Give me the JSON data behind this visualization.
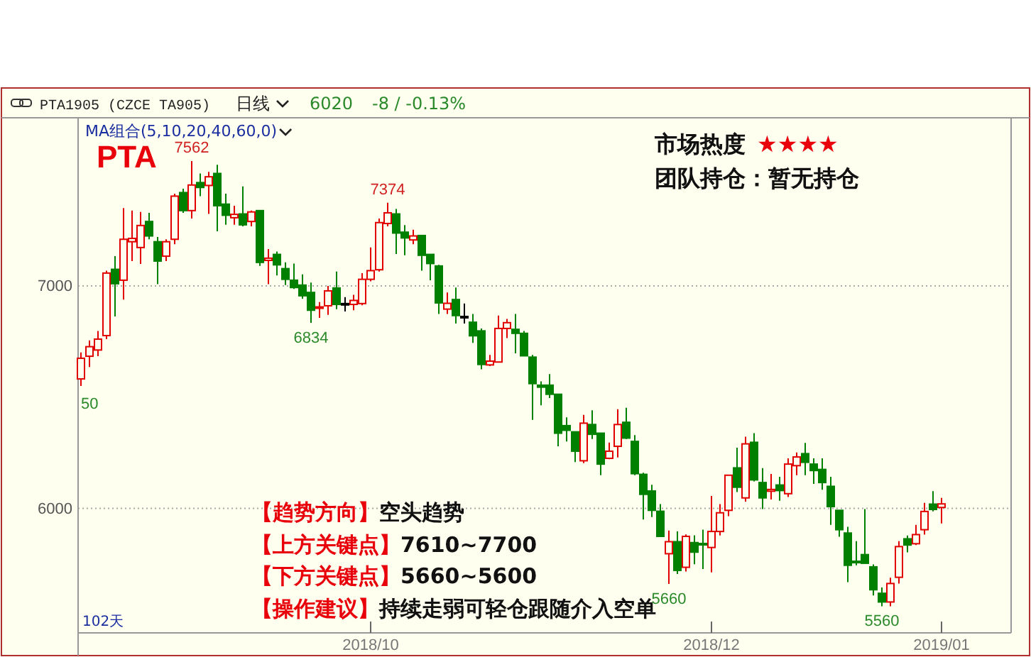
{
  "chart_data": {
    "type": "candlestick",
    "title": "PTA",
    "categories": [
      null,
      null,
      null,
      null,
      null,
      null,
      null,
      null,
      null,
      null,
      null,
      null,
      null,
      null,
      null,
      null,
      null,
      null,
      null,
      null,
      null,
      null,
      null,
      null,
      null,
      null,
      null,
      null,
      null,
      null,
      null,
      null,
      null,
      null,
      "2018/10",
      null,
      null,
      null,
      null,
      null,
      null,
      null,
      null,
      null,
      null,
      null,
      null,
      null,
      null,
      null,
      null,
      null,
      null,
      null,
      null,
      null,
      null,
      null,
      null,
      null,
      null,
      null,
      null,
      null,
      null,
      null,
      null,
      null,
      null,
      null,
      null,
      null,
      null,
      null,
      "2018/12",
      null,
      null,
      null,
      null,
      null,
      null,
      null,
      null,
      null,
      null,
      null,
      null,
      null,
      null,
      null,
      null,
      null,
      null,
      null,
      null,
      null,
      null,
      null,
      null,
      null,
      null,
      "2019/01"
    ],
    "ohlc": [
      [
        6582,
        6701,
        6550,
        6675
      ],
      [
        6684,
        6755,
        6636,
        6727
      ],
      [
        6712,
        6798,
        6684,
        6761
      ],
      [
        6777,
        7069,
        6761,
        7058
      ],
      [
        7075,
        7134,
        6863,
        7010
      ],
      [
        7026,
        7350,
        6939,
        7210
      ],
      [
        7199,
        7339,
        7112,
        7214
      ],
      [
        7173,
        7333,
        7099,
        7272
      ],
      [
        7290,
        7329,
        7210,
        7225
      ],
      [
        7199,
        7220,
        7008,
        7112
      ],
      [
        7134,
        7210,
        7112,
        7199
      ],
      [
        7210,
        7415,
        7188,
        7404
      ],
      [
        7420,
        7437,
        7329,
        7339
      ],
      [
        7339,
        7562,
        7303,
        7454
      ],
      [
        7465,
        7506,
        7404,
        7443
      ],
      [
        7452,
        7513,
        7324,
        7491
      ],
      [
        7506,
        7545,
        7246,
        7361
      ],
      [
        7368,
        7415,
        7275,
        7318
      ],
      [
        7307,
        7361,
        7275,
        7322
      ],
      [
        7324,
        7448,
        7268,
        7275
      ],
      [
        7290,
        7339,
        7268,
        7333
      ],
      [
        7339,
        7339,
        7090,
        7106
      ],
      [
        7115,
        7166,
        7008,
        7125
      ],
      [
        7142,
        7155,
        7047,
        7095
      ],
      [
        7078,
        7106,
        7004,
        7030
      ],
      [
        7026,
        7101,
        6987,
        6993
      ],
      [
        7004,
        7052,
        6943,
        6956
      ],
      [
        6971,
        7015,
        6834,
        6891
      ],
      [
        6900,
        6928,
        6857,
        6906
      ],
      [
        6911,
        7000,
        6870,
        6978
      ],
      [
        6991,
        7065,
        6896,
        6917
      ],
      [
        6921,
        6950,
        6885,
        6921
      ],
      [
        6917,
        6960,
        6891,
        6935
      ],
      [
        6921,
        7058,
        6913,
        7030
      ],
      [
        7030,
        7173,
        7021,
        7069
      ],
      [
        7073,
        7303,
        7065,
        7285
      ],
      [
        7281,
        7374,
        7268,
        7329
      ],
      [
        7324,
        7346,
        7144,
        7238
      ],
      [
        7242,
        7274,
        7138,
        7216
      ],
      [
        7207,
        7253,
        7188,
        7225
      ],
      [
        7227,
        7227,
        7069,
        7138
      ],
      [
        7142,
        7142,
        7026,
        7101
      ],
      [
        7090,
        7095,
        6874,
        6924
      ],
      [
        6896,
        6971,
        6874,
        6922
      ],
      [
        6939,
        6993,
        6831,
        6867
      ],
      [
        6863,
        6921,
        6831,
        6863
      ],
      [
        6837,
        6874,
        6744,
        6776
      ],
      [
        6798,
        6809,
        6625,
        6647
      ],
      [
        6645,
        6690,
        6640,
        6662
      ],
      [
        6658,
        6867,
        6658,
        6809
      ],
      [
        6809,
        6852,
        6766,
        6835
      ],
      [
        6805,
        6874,
        6697,
        6787
      ],
      [
        6787,
        6798,
        6686,
        6686
      ],
      [
        6680,
        6690,
        6398,
        6561
      ],
      [
        6554,
        6571,
        6463,
        6545
      ],
      [
        6554,
        6604,
        6496,
        6513
      ],
      [
        6513,
        6513,
        6279,
        6338
      ],
      [
        6372,
        6409,
        6301,
        6351
      ],
      [
        6344,
        6344,
        6208,
        6257
      ],
      [
        6214,
        6420,
        6203,
        6383
      ],
      [
        6377,
        6441,
        6312,
        6333
      ],
      [
        6338,
        6338,
        6149,
        6199
      ],
      [
        6225,
        6296,
        6221,
        6257
      ],
      [
        6279,
        6446,
        6229,
        6377
      ],
      [
        6387,
        6452,
        6312,
        6316
      ],
      [
        6301,
        6329,
        6149,
        6156
      ],
      [
        6153,
        6160,
        5950,
        6063
      ],
      [
        6078,
        6106,
        5961,
        5991
      ],
      [
        5987,
        6019,
        5874,
        5874
      ],
      [
        5796,
        5900,
        5660,
        5850
      ],
      [
        5850,
        5896,
        5705,
        5721
      ],
      [
        5735,
        5883,
        5716,
        5874
      ],
      [
        5846,
        5879,
        5749,
        5803
      ],
      [
        5842,
        5904,
        5727,
        5836
      ],
      [
        5824,
        6056,
        5712,
        5896
      ],
      [
        5896,
        6019,
        5878,
        5980
      ],
      [
        5991,
        6149,
        5965,
        6149
      ],
      [
        6182,
        6273,
        6073,
        6095
      ],
      [
        6047,
        6322,
        6030,
        6290
      ],
      [
        6297,
        6338,
        6121,
        6128
      ],
      [
        6116,
        6181,
        5997,
        6047
      ],
      [
        6077,
        6155,
        6040,
        6085
      ],
      [
        6105,
        6142,
        6034,
        6080
      ],
      [
        6066,
        6225,
        6051,
        6199
      ],
      [
        6192,
        6251,
        6149,
        6231
      ],
      [
        6246,
        6294,
        6149,
        6207
      ],
      [
        6199,
        6225,
        6110,
        6170
      ],
      [
        6175,
        6225,
        6084,
        6116
      ],
      [
        6099,
        6142,
        5926,
        6008
      ],
      [
        5991,
        5991,
        5872,
        5904
      ],
      [
        5889,
        5917,
        5668,
        5744
      ],
      [
        5762,
        5852,
        5744,
        5759
      ],
      [
        5792,
        5997,
        5753,
        5753
      ],
      [
        5737,
        5748,
        5608,
        5634
      ],
      [
        5618,
        5644,
        5560,
        5579
      ],
      [
        5579,
        5688,
        5560,
        5662
      ],
      [
        5690,
        5852,
        5662,
        5828
      ],
      [
        5863,
        5878,
        5802,
        5835
      ],
      [
        5841,
        5926,
        5835,
        5882
      ],
      [
        5904,
        6025,
        5882,
        5986
      ],
      [
        6019,
        6077,
        5986,
        5995
      ],
      [
        6004,
        6047,
        5932,
        6020
      ]
    ],
    "colors": [
      "#e00000",
      "#e00000",
      "#e00000",
      "#e00000",
      "#008000",
      "#e00000",
      "#e00000",
      "#e00000",
      "#008000",
      "#008000",
      "#e00000",
      "#e00000",
      "#008000",
      "#e00000",
      "#008000",
      "#e00000",
      "#008000",
      "#008000",
      "#e00000",
      "#008000",
      "#e00000",
      "#008000",
      "#e00000",
      "#008000",
      "#008000",
      "#008000",
      "#008000",
      "#008000",
      "#e00000",
      "#e00000",
      "#008000",
      "#000000",
      "#e00000",
      "#e00000",
      "#e00000",
      "#e00000",
      "#e00000",
      "#008000",
      "#008000",
      "#e00000",
      "#008000",
      "#008000",
      "#008000",
      "#e00000",
      "#008000",
      "#000000",
      "#008000",
      "#008000",
      "#e00000",
      "#e00000",
      "#e00000",
      "#008000",
      "#008000",
      "#008000",
      "#008000",
      "#008000",
      "#008000",
      "#008000",
      "#008000",
      "#e00000",
      "#008000",
      "#008000",
      "#e00000",
      "#e00000",
      "#008000",
      "#008000",
      "#008000",
      "#008000",
      "#008000",
      "#e00000",
      "#008000",
      "#e00000",
      "#008000",
      "#008000",
      "#e00000",
      "#e00000",
      "#e00000",
      "#008000",
      "#e00000",
      "#008000",
      "#008000",
      "#e00000",
      "#008000",
      "#e00000",
      "#e00000",
      "#008000",
      "#008000",
      "#008000",
      "#008000",
      "#008000",
      "#008000",
      "#008000",
      "#008000",
      "#008000",
      "#008000",
      "#e00000",
      "#e00000",
      "#008000",
      "#e00000",
      "#e00000",
      "#008000",
      "#e00000"
    ],
    "ylim": [
      5440,
      7750
    ],
    "yticks": [
      6000,
      7000
    ],
    "grid": "y",
    "annotations": [
      "MA组合(5,10,20,40,60,0)",
      "PTA1905 (CZCE TA905)",
      "日线",
      "6020",
      "-8 / -0.13%",
      "市场热度",
      "★★★★",
      "团队持仓：暂无持仓",
      "【趋势方向】",
      "空头趋势",
      "【上方关键点】",
      "7610~7700",
      "【下方关键点】",
      "5660~5600",
      "【操作建议】",
      "持续走弱可轻仓跟随介入空单",
      "102天",
      {
        "text": "7562",
        "y": 7562
      },
      {
        "text": "7374",
        "y": 7374
      },
      {
        "text": "6834",
        "y": 6834
      },
      {
        "text": "5660",
        "y": 5660
      },
      {
        "text": "5560",
        "y": 5560
      },
      "50"
    ]
  }
}
